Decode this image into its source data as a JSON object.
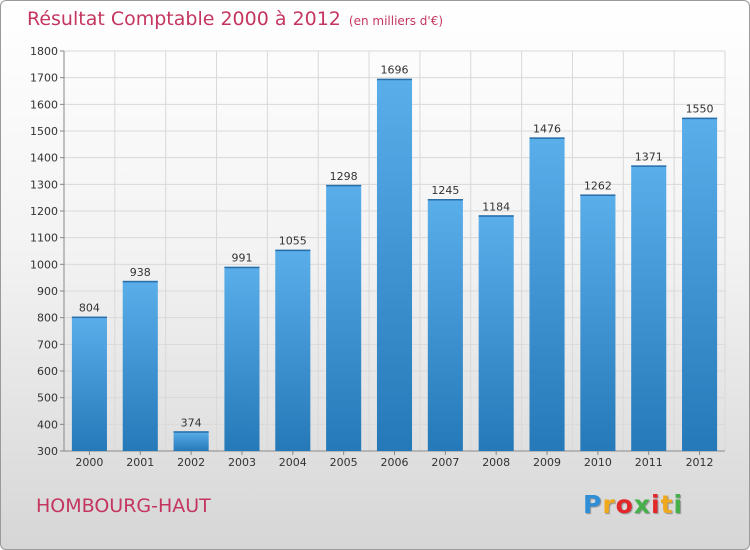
{
  "chart_data": {
    "type": "bar",
    "title": "Résultat Comptable 2000 à 2012",
    "subtitle": "(en milliers d'€)",
    "categories": [
      "2000",
      "2001",
      "2002",
      "2003",
      "2004",
      "2005",
      "2006",
      "2007",
      "2008",
      "2009",
      "2010",
      "2011",
      "2012"
    ],
    "values": [
      804,
      938,
      374,
      991,
      1055,
      1298,
      1696,
      1245,
      1184,
      1476,
      1262,
      1371,
      1550
    ],
    "yticks": [
      300,
      400,
      500,
      600,
      700,
      800,
      900,
      1000,
      1100,
      1200,
      1300,
      1400,
      1500,
      1600,
      1700,
      1800
    ],
    "ylim": [
      300,
      1800
    ],
    "xlabel": "",
    "ylabel": "",
    "grid": true,
    "bar_color_top": "#5aaeea",
    "bar_color_bottom": "#2579b8"
  },
  "footer": {
    "place": "HOMBOURG-HAUT",
    "logo_letters": [
      "P",
      "r",
      "o",
      "x",
      "i",
      "t",
      "i"
    ],
    "logo_colors": [
      "#2e8fd6",
      "#f0a81c",
      "#e3262a",
      "#46b04a",
      "#e3262a",
      "#f0a81c",
      "#46b04a"
    ]
  },
  "colors": {
    "accent": "#c4365f"
  }
}
